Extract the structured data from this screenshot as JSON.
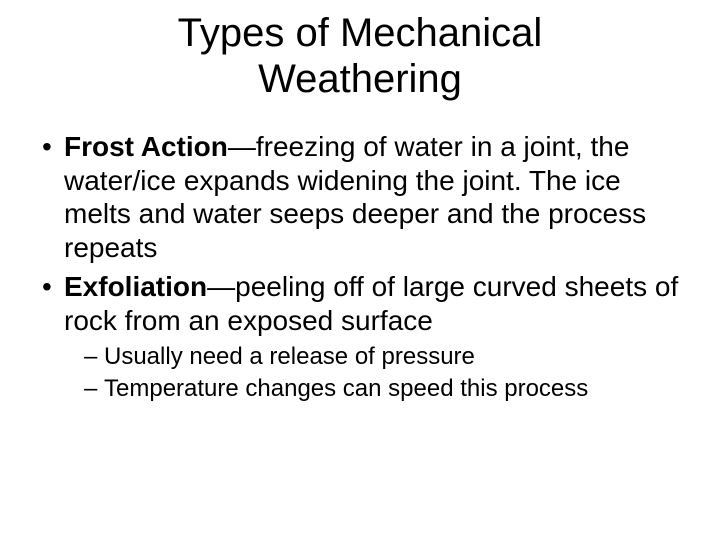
{
  "slide": {
    "background_color": "#ffffff",
    "text_color": "#000000",
    "title": {
      "line1": "Types of Mechanical",
      "line2": "Weathering",
      "fontsize": 40,
      "fontweight": 400,
      "align": "center"
    },
    "bullets": [
      {
        "term": "Frost Action",
        "definition": "—freezing of water in a joint, the water/ice expands widening the joint. The ice melts and water seeps deeper and the process repeats",
        "sub": []
      },
      {
        "term": "Exfoliation",
        "definition": "—peeling off of large curved sheets of rock from an exposed surface",
        "sub": [
          "Usually need a release of pressure",
          "Temperature changes can speed this process"
        ]
      }
    ],
    "body_fontsize": 28,
    "sub_fontsize": 24,
    "font_family": "Arial"
  }
}
